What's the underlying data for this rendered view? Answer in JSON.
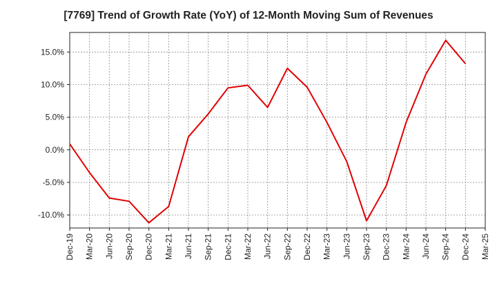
{
  "chart_data": {
    "type": "line",
    "title": "[7769]  Trend of Growth Rate (YoY) of 12-Month Moving Sum of Revenues",
    "xlabel": "",
    "ylabel": "",
    "x_tick_labels": [
      "Dec-19",
      "Mar-20",
      "Jun-20",
      "Sep-20",
      "Dec-20",
      "Mar-21",
      "Jun-21",
      "Sep-21",
      "Dec-21",
      "Mar-22",
      "Jun-22",
      "Sep-22",
      "Dec-22",
      "Mar-23",
      "Jun-23",
      "Sep-23",
      "Dec-23",
      "Mar-24",
      "Jun-24",
      "Sep-24",
      "Dec-24",
      "Mar-25"
    ],
    "y_tick_labels": [
      "15.0%",
      "10.0%",
      "5.0%",
      "0.0%",
      "-5.0%",
      "-10.0%"
    ],
    "y_tick_values": [
      15,
      10,
      5,
      0,
      -5,
      -10
    ],
    "ylim": [
      -12,
      18
    ],
    "grid": true,
    "series": [
      {
        "name": "",
        "color": "#e00000",
        "x": [
          "Dec-19",
          "Mar-20",
          "Jun-20",
          "Sep-20",
          "Dec-20",
          "Mar-21",
          "Jun-21",
          "Sep-21",
          "Dec-21",
          "Mar-22",
          "Jun-22",
          "Sep-22",
          "Dec-22",
          "Mar-23",
          "Jun-23",
          "Sep-23",
          "Dec-23",
          "Mar-24",
          "Jun-24",
          "Sep-24",
          "Dec-24"
        ],
        "values": [
          0.9,
          -3.5,
          -7.4,
          -7.9,
          -11.2,
          -8.7,
          2.0,
          5.5,
          9.5,
          9.9,
          6.5,
          12.5,
          9.6,
          4.2,
          -1.8,
          -10.9,
          -5.5,
          4.2,
          11.6,
          16.8,
          13.2
        ]
      }
    ]
  }
}
